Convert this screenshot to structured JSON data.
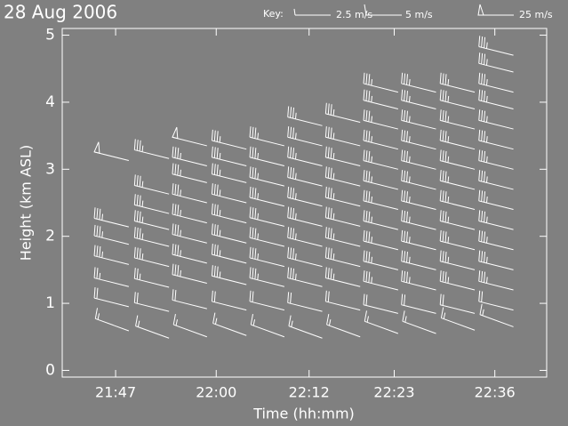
{
  "chart_data": {
    "type": "barbs",
    "title": "28 Aug 2006",
    "xlabel": "Time (hh:mm)",
    "ylabel": "Height (km ASL)",
    "color": "#ffffff",
    "key": {
      "title": "Key:",
      "items": [
        {
          "label": "2.5 m/s",
          "speed": 2.5
        },
        {
          "label": "5 m/s",
          "speed": 5
        },
        {
          "label": "25 m/s",
          "speed": 25
        }
      ]
    },
    "x": [
      1308.7,
      1313.9,
      1318.8,
      1323.9,
      1328.8,
      1333.7,
      1338.6,
      1343.5,
      1348.4,
      1353.4,
      1358.4
    ],
    "xlim": [
      1300.1,
      1362.7
    ],
    "xticks": [
      {
        "value": 1307,
        "label": "21:47"
      },
      {
        "value": 1320,
        "label": "22:00"
      },
      {
        "value": 1332,
        "label": "22:12"
      },
      {
        "value": 1343,
        "label": "22:23"
      },
      {
        "value": 1356,
        "label": "22:36"
      }
    ],
    "ylim": [
      -0.1,
      5.1
    ],
    "yticks": [
      0,
      1,
      2,
      3,
      4,
      5
    ],
    "columns": [
      {
        "heights": [
          0.59,
          0.95,
          1.25,
          1.58,
          1.88,
          2.14,
          3.13
        ],
        "speeds": [
          7.5,
          10,
          12.5,
          17.5,
          17.5,
          17.5,
          25
        ],
        "directions": [
          290,
          284,
          284,
          284,
          284,
          284,
          284
        ]
      },
      {
        "heights": [
          0.48,
          0.88,
          1.24,
          1.55,
          1.85,
          2.1,
          2.34,
          2.63,
          3.16
        ],
        "speeds": [
          7.5,
          10,
          12.5,
          17.5,
          17.5,
          17.5,
          17.5,
          17.5,
          17.5
        ],
        "directions": [
          290,
          284,
          284,
          284,
          284,
          284,
          284,
          284,
          284
        ]
      },
      {
        "heights": [
          0.5,
          0.92,
          1.3,
          1.6,
          1.9,
          2.2,
          2.5,
          2.8,
          3.05,
          3.35
        ],
        "speeds": [
          7.5,
          10,
          17.5,
          17.5,
          17.5,
          17.5,
          17.5,
          17.5,
          17.5,
          25
        ],
        "directions": [
          290,
          284,
          284,
          284,
          284,
          284,
          284,
          284,
          284,
          284
        ]
      },
      {
        "heights": [
          0.52,
          0.9,
          1.28,
          1.6,
          1.9,
          2.2,
          2.5,
          2.8,
          3.05,
          3.3
        ],
        "speeds": [
          7.5,
          10,
          17.5,
          17.5,
          17.5,
          17.5,
          17.5,
          17.5,
          17.5,
          17.5
        ],
        "directions": [
          290,
          284,
          284,
          284,
          284,
          284,
          284,
          284,
          284,
          284
        ]
      },
      {
        "heights": [
          0.5,
          0.9,
          1.25,
          1.55,
          1.85,
          2.15,
          2.45,
          2.75,
          3.05,
          3.35
        ],
        "speeds": [
          7.5,
          10,
          17.5,
          17.5,
          17.5,
          17.5,
          17.5,
          17.5,
          17.5,
          17.5
        ],
        "directions": [
          290,
          284,
          284,
          284,
          284,
          284,
          284,
          284,
          284,
          284
        ]
      },
      {
        "heights": [
          0.48,
          0.88,
          1.25,
          1.55,
          1.85,
          2.15,
          2.45,
          2.75,
          3.05,
          3.35,
          3.65
        ],
        "speeds": [
          7.5,
          10,
          17.5,
          17.5,
          17.5,
          17.5,
          17.5,
          17.5,
          17.5,
          17.5,
          17.5
        ],
        "directions": [
          290,
          284,
          284,
          284,
          284,
          284,
          284,
          284,
          284,
          284,
          284
        ]
      },
      {
        "heights": [
          0.5,
          0.9,
          1.25,
          1.55,
          1.85,
          2.15,
          2.45,
          2.75,
          3.05,
          3.35,
          3.7
        ],
        "speeds": [
          7.5,
          10,
          17.5,
          17.5,
          17.5,
          17.5,
          17.5,
          17.5,
          17.5,
          17.5,
          17.5
        ],
        "directions": [
          290,
          284,
          284,
          284,
          284,
          284,
          284,
          284,
          284,
          284,
          284
        ]
      },
      {
        "heights": [
          0.55,
          0.85,
          1.2,
          1.5,
          1.8,
          2.1,
          2.4,
          2.7,
          3.0,
          3.3,
          3.6,
          3.9,
          4.15
        ],
        "speeds": [
          7.5,
          10,
          17.5,
          17.5,
          17.5,
          17.5,
          17.5,
          17.5,
          17.5,
          17.5,
          17.5,
          17.5,
          17.5
        ],
        "directions": [
          290,
          284,
          284,
          284,
          284,
          284,
          284,
          284,
          284,
          284,
          284,
          284,
          284
        ]
      },
      {
        "heights": [
          0.55,
          0.85,
          1.2,
          1.5,
          1.8,
          2.1,
          2.4,
          2.7,
          3.0,
          3.3,
          3.6,
          3.9,
          4.15
        ],
        "speeds": [
          7.5,
          10,
          17.5,
          17.5,
          17.5,
          17.5,
          17.5,
          17.5,
          17.5,
          17.5,
          17.5,
          17.5,
          17.5
        ],
        "directions": [
          290,
          284,
          284,
          284,
          284,
          284,
          284,
          284,
          284,
          284,
          284,
          284,
          284
        ]
      },
      {
        "heights": [
          0.6,
          0.85,
          1.2,
          1.5,
          1.8,
          2.1,
          2.4,
          2.7,
          3.0,
          3.3,
          3.6,
          3.9,
          4.15
        ],
        "speeds": [
          7.5,
          10,
          17.5,
          17.5,
          17.5,
          17.5,
          17.5,
          17.5,
          17.5,
          17.5,
          17.5,
          17.5,
          17.5
        ],
        "directions": [
          290,
          284,
          284,
          284,
          284,
          284,
          284,
          284,
          284,
          284,
          284,
          284,
          284
        ]
      },
      {
        "heights": [
          0.65,
          0.9,
          1.2,
          1.5,
          1.8,
          2.1,
          2.4,
          2.7,
          3.0,
          3.3,
          3.6,
          3.9,
          4.15,
          4.45,
          4.7
        ],
        "speeds": [
          7.5,
          10,
          17.5,
          17.5,
          17.5,
          17.5,
          17.5,
          17.5,
          17.5,
          17.5,
          17.5,
          17.5,
          17.5,
          17.5,
          17.5
        ],
        "directions": [
          290,
          284,
          284,
          284,
          284,
          284,
          284,
          284,
          284,
          284,
          284,
          284,
          284,
          284,
          284
        ]
      }
    ]
  }
}
